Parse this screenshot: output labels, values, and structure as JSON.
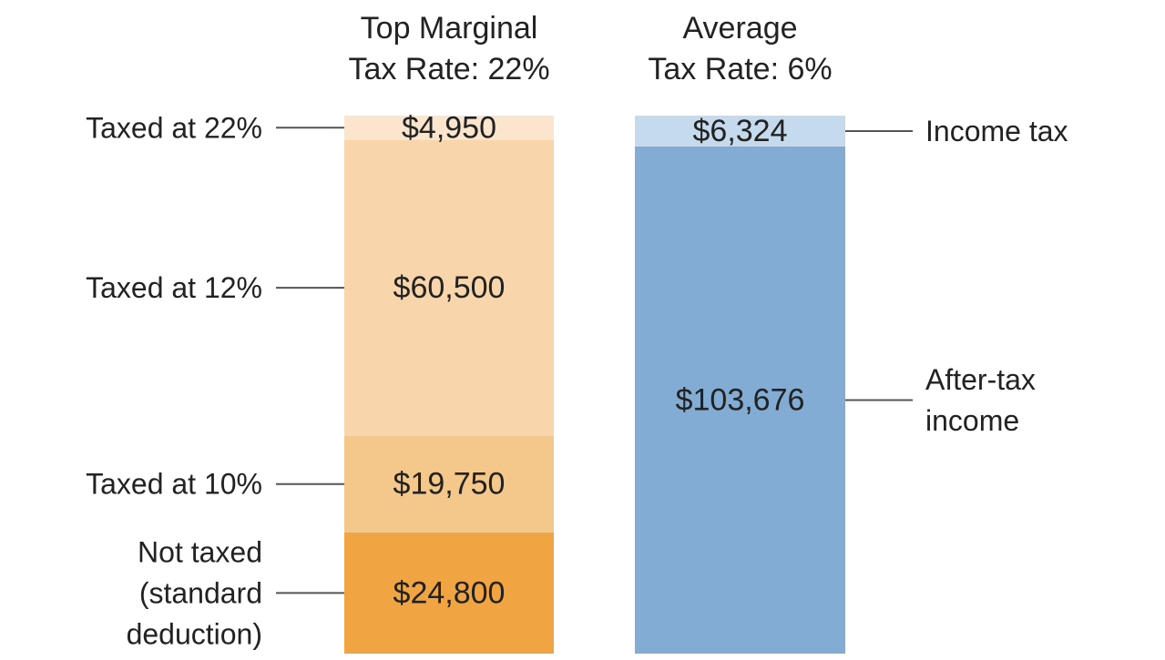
{
  "chart_data": {
    "type": "bar",
    "stacked": true,
    "bars": [
      {
        "title_lines": [
          "Top Marginal",
          "Tax Rate: 22%"
        ],
        "segments": [
          {
            "value": 24800,
            "value_label": "$24,800",
            "side_label_lines": [
              "Not taxed",
              "(standard",
              "deduction)"
            ],
            "color": "#f0a442"
          },
          {
            "value": 19750,
            "value_label": "$19,750",
            "side_label_lines": [
              "Taxed at 10%"
            ],
            "color": "#f4c78a"
          },
          {
            "value": 60500,
            "value_label": "$60,500",
            "side_label_lines": [
              "Taxed at 12%"
            ],
            "color": "#f8d5ab"
          },
          {
            "value": 4950,
            "value_label": "$4,950",
            "side_label_lines": [
              "Taxed at 22%"
            ],
            "color": "#fbe6cd"
          }
        ]
      },
      {
        "title_lines": [
          "Average",
          "Tax Rate: 6%"
        ],
        "segments": [
          {
            "value": 103676,
            "value_label": "$103,676",
            "side_label_lines": [
              "After-tax",
              "income"
            ],
            "color": "#82acd3"
          },
          {
            "value": 6324,
            "value_label": "$6,324",
            "side_label_lines": [
              "Income tax"
            ],
            "color": "#c5daec"
          }
        ]
      }
    ]
  }
}
